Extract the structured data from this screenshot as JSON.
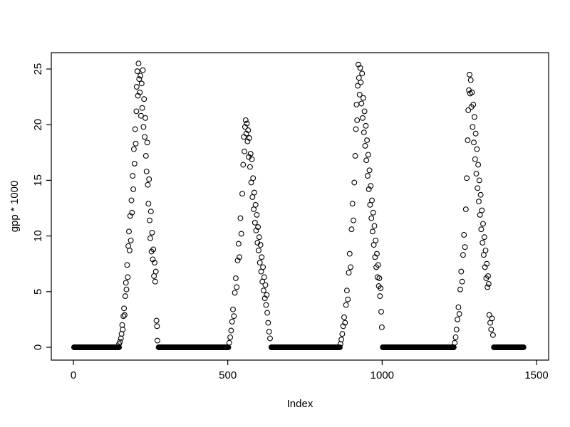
{
  "figure": {
    "background": "#ffffff",
    "plot_type_hint": "R base scatter plot, open circles (pch=1)"
  },
  "chart_data": {
    "type": "scatter",
    "title": "",
    "xlabel": "Index",
    "ylabel": "gpp * 1000",
    "marker": "open-circle",
    "marker_color": "#000000",
    "grid": false,
    "legend": null,
    "xlim": [
      -60,
      1520
    ],
    "ylim": [
      -1.2,
      26.5
    ],
    "x_ticks": [
      0,
      500,
      1000,
      1500
    ],
    "y_ticks": [
      0,
      5,
      10,
      15,
      20,
      25
    ],
    "zero_run_step": 2,
    "zero_runs": [
      [
        2,
        148
      ],
      [
        276,
        503
      ],
      [
        641,
        863
      ],
      [
        1002,
        1233
      ],
      [
        1362,
        1458
      ]
    ],
    "points": [
      [
        148,
        0.3
      ],
      [
        151,
        0.5
      ],
      [
        154,
        0.8
      ],
      [
        156,
        1.2
      ],
      [
        158,
        2.0
      ],
      [
        160,
        1.6
      ],
      [
        162,
        2.8
      ],
      [
        164,
        3.5
      ],
      [
        166,
        2.9
      ],
      [
        168,
        4.6
      ],
      [
        170,
        5.8
      ],
      [
        172,
        5.2
      ],
      [
        174,
        7.4
      ],
      [
        176,
        6.3
      ],
      [
        178,
        9.1
      ],
      [
        180,
        10.4
      ],
      [
        182,
        8.7
      ],
      [
        184,
        11.8
      ],
      [
        186,
        9.6
      ],
      [
        188,
        13.2
      ],
      [
        190,
        12.1
      ],
      [
        192,
        15.4
      ],
      [
        194,
        14.2
      ],
      [
        196,
        17.8
      ],
      [
        198,
        16.5
      ],
      [
        200,
        19.6
      ],
      [
        202,
        18.3
      ],
      [
        204,
        21.2
      ],
      [
        205,
        23.4
      ],
      [
        207,
        24.8
      ],
      [
        209,
        22.6
      ],
      [
        211,
        25.5
      ],
      [
        213,
        24.1
      ],
      [
        215,
        22.9
      ],
      [
        217,
        24.4
      ],
      [
        219,
        20.8
      ],
      [
        221,
        23.7
      ],
      [
        223,
        21.5
      ],
      [
        225,
        24.9
      ],
      [
        227,
        19.8
      ],
      [
        229,
        22.3
      ],
      [
        231,
        18.9
      ],
      [
        233,
        20.6
      ],
      [
        235,
        17.2
      ],
      [
        237,
        15.8
      ],
      [
        239,
        18.4
      ],
      [
        241,
        14.6
      ],
      [
        243,
        12.9
      ],
      [
        245,
        15.1
      ],
      [
        247,
        11.4
      ],
      [
        249,
        9.8
      ],
      [
        251,
        12.2
      ],
      [
        253,
        8.6
      ],
      [
        255,
        10.3
      ],
      [
        257,
        7.9
      ],
      [
        259,
        8.8
      ],
      [
        261,
        6.4
      ],
      [
        263,
        7.6
      ],
      [
        265,
        5.9
      ],
      [
        267,
        6.8
      ],
      [
        269,
        2.4
      ],
      [
        271,
        1.9
      ],
      [
        272,
        0.6
      ],
      [
        505,
        0.4
      ],
      [
        508,
        0.9
      ],
      [
        511,
        1.5
      ],
      [
        514,
        2.3
      ],
      [
        517,
        3.4
      ],
      [
        520,
        2.8
      ],
      [
        523,
        4.9
      ],
      [
        526,
        6.2
      ],
      [
        529,
        5.4
      ],
      [
        532,
        7.8
      ],
      [
        535,
        9.3
      ],
      [
        538,
        8.1
      ],
      [
        541,
        11.6
      ],
      [
        544,
        10.2
      ],
      [
        547,
        13.8
      ],
      [
        550,
        16.4
      ],
      [
        552,
        18.9
      ],
      [
        554,
        17.6
      ],
      [
        556,
        19.8
      ],
      [
        558,
        20.4
      ],
      [
        560,
        19.2
      ],
      [
        562,
        20.1
      ],
      [
        564,
        18.5
      ],
      [
        566,
        19.5
      ],
      [
        568,
        17.1
      ],
      [
        570,
        18.8
      ],
      [
        572,
        16.2
      ],
      [
        574,
        17.4
      ],
      [
        576,
        14.8
      ],
      [
        578,
        16.9
      ],
      [
        580,
        13.5
      ],
      [
        582,
        15.2
      ],
      [
        584,
        12.4
      ],
      [
        586,
        13.9
      ],
      [
        588,
        11.2
      ],
      [
        590,
        12.8
      ],
      [
        592,
        10.5
      ],
      [
        594,
        11.9
      ],
      [
        596,
        9.4
      ],
      [
        598,
        10.8
      ],
      [
        600,
        8.7
      ],
      [
        602,
        9.9
      ],
      [
        604,
        7.6
      ],
      [
        606,
        9.2
      ],
      [
        608,
        6.8
      ],
      [
        610,
        8.1
      ],
      [
        612,
        5.9
      ],
      [
        614,
        7.2
      ],
      [
        616,
        5.1
      ],
      [
        618,
        6.3
      ],
      [
        620,
        4.4
      ],
      [
        622,
        5.6
      ],
      [
        624,
        3.8
      ],
      [
        626,
        4.7
      ],
      [
        628,
        3.1
      ],
      [
        631,
        2.2
      ],
      [
        634,
        1.4
      ],
      [
        637,
        0.8
      ],
      [
        865,
        0.3
      ],
      [
        868,
        0.7
      ],
      [
        871,
        1.2
      ],
      [
        874,
        1.9
      ],
      [
        877,
        2.7
      ],
      [
        880,
        2.2
      ],
      [
        883,
        3.8
      ],
      [
        886,
        5.1
      ],
      [
        889,
        4.3
      ],
      [
        892,
        6.7
      ],
      [
        895,
        8.4
      ],
      [
        898,
        7.2
      ],
      [
        901,
        10.6
      ],
      [
        904,
        12.9
      ],
      [
        907,
        11.4
      ],
      [
        910,
        14.8
      ],
      [
        913,
        17.2
      ],
      [
        915,
        19.6
      ],
      [
        917,
        21.8
      ],
      [
        919,
        20.4
      ],
      [
        921,
        23.5
      ],
      [
        923,
        25.4
      ],
      [
        925,
        24.2
      ],
      [
        927,
        22.7
      ],
      [
        929,
        25.1
      ],
      [
        931,
        23.8
      ],
      [
        933,
        21.9
      ],
      [
        935,
        24.6
      ],
      [
        937,
        20.6
      ],
      [
        939,
        22.4
      ],
      [
        941,
        19.3
      ],
      [
        943,
        21.2
      ],
      [
        945,
        18.1
      ],
      [
        947,
        19.9
      ],
      [
        949,
        16.8
      ],
      [
        951,
        18.6
      ],
      [
        953,
        15.4
      ],
      [
        955,
        17.3
      ],
      [
        957,
        14.2
      ],
      [
        959,
        15.9
      ],
      [
        961,
        12.8
      ],
      [
        963,
        14.5
      ],
      [
        965,
        11.6
      ],
      [
        967,
        13.2
      ],
      [
        969,
        10.4
      ],
      [
        971,
        12.1
      ],
      [
        973,
        9.2
      ],
      [
        975,
        10.9
      ],
      [
        977,
        8.1
      ],
      [
        979,
        9.6
      ],
      [
        981,
        7.2
      ],
      [
        983,
        8.4
      ],
      [
        985,
        6.3
      ],
      [
        987,
        7.4
      ],
      [
        989,
        5.5
      ],
      [
        991,
        6.2
      ],
      [
        993,
        4.6
      ],
      [
        995,
        5.3
      ],
      [
        997,
        3.2
      ],
      [
        999,
        1.8
      ],
      [
        1235,
        0.4
      ],
      [
        1238,
        0.9
      ],
      [
        1241,
        1.6
      ],
      [
        1244,
        2.5
      ],
      [
        1247,
        3.6
      ],
      [
        1250,
        3.0
      ],
      [
        1253,
        5.2
      ],
      [
        1256,
        6.8
      ],
      [
        1259,
        5.9
      ],
      [
        1262,
        8.3
      ],
      [
        1265,
        10.1
      ],
      [
        1268,
        9.0
      ],
      [
        1271,
        12.4
      ],
      [
        1274,
        15.2
      ],
      [
        1277,
        18.6
      ],
      [
        1279,
        21.3
      ],
      [
        1281,
        23.1
      ],
      [
        1283,
        24.5
      ],
      [
        1285,
        22.8
      ],
      [
        1287,
        24.0
      ],
      [
        1289,
        21.6
      ],
      [
        1291,
        22.9
      ],
      [
        1293,
        19.8
      ],
      [
        1295,
        21.8
      ],
      [
        1297,
        18.4
      ],
      [
        1299,
        20.7
      ],
      [
        1301,
        16.9
      ],
      [
        1303,
        19.2
      ],
      [
        1305,
        15.6
      ],
      [
        1307,
        17.8
      ],
      [
        1309,
        14.3
      ],
      [
        1311,
        16.4
      ],
      [
        1313,
        13.1
      ],
      [
        1315,
        15.0
      ],
      [
        1317,
        11.9
      ],
      [
        1319,
        13.7
      ],
      [
        1321,
        10.6
      ],
      [
        1323,
        12.3
      ],
      [
        1325,
        9.4
      ],
      [
        1327,
        11.1
      ],
      [
        1329,
        8.3
      ],
      [
        1331,
        9.9
      ],
      [
        1333,
        7.2
      ],
      [
        1335,
        8.7
      ],
      [
        1337,
        6.2
      ],
      [
        1339,
        7.5
      ],
      [
        1341,
        5.4
      ],
      [
        1343,
        6.4
      ],
      [
        1345,
        5.7
      ],
      [
        1347,
        2.9
      ],
      [
        1350,
        2.2
      ],
      [
        1353,
        1.6
      ],
      [
        1356,
        2.6
      ],
      [
        1359,
        1.1
      ]
    ]
  }
}
